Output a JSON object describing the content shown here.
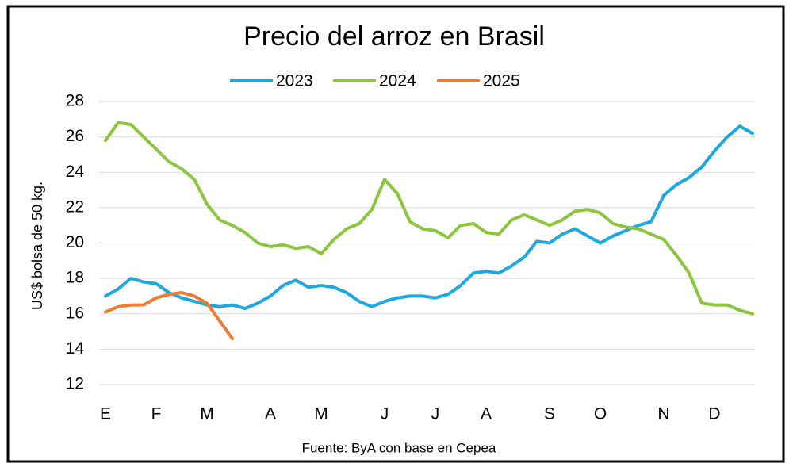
{
  "chart_data": {
    "type": "line",
    "title": "Precio del arroz en Brasil",
    "y_label": "US$ bolsa de 50 kg.",
    "source": "Fuente: ByA con base en Cepea",
    "categories": [
      "E",
      null,
      null,
      null,
      "F",
      null,
      null,
      null,
      "M",
      null,
      null,
      null,
      null,
      "A",
      null,
      null,
      null,
      "M",
      null,
      null,
      null,
      null,
      "J",
      null,
      null,
      null,
      "J",
      null,
      null,
      null,
      "A",
      null,
      null,
      null,
      null,
      "S",
      null,
      null,
      null,
      "O",
      null,
      null,
      null,
      null,
      "N",
      null,
      null,
      null,
      "D",
      null,
      null,
      null
    ],
    "series": [
      {
        "name": "2023",
        "color": "#1ca8e0",
        "values": [
          17.0,
          17.4,
          18.0,
          17.8,
          17.7,
          17.2,
          16.9,
          16.7,
          16.5,
          16.4,
          16.5,
          16.3,
          16.6,
          17.0,
          17.6,
          17.9,
          17.5,
          17.6,
          17.5,
          17.2,
          16.7,
          16.4,
          16.7,
          16.9,
          17.0,
          17.0,
          16.9,
          17.1,
          17.6,
          18.3,
          18.4,
          18.3,
          18.7,
          19.2,
          20.1,
          20.0,
          20.5,
          20.8,
          20.4,
          20.0,
          20.4,
          20.7,
          21.0,
          21.2,
          22.7,
          23.3,
          23.7,
          24.3,
          25.2,
          26.0,
          26.6,
          26.2
        ]
      },
      {
        "name": "2024",
        "color": "#8cc63f",
        "values": [
          25.8,
          26.8,
          26.7,
          26.0,
          25.3,
          24.6,
          24.2,
          23.6,
          22.2,
          21.3,
          21.0,
          20.6,
          20.0,
          19.8,
          19.9,
          19.7,
          19.8,
          19.4,
          20.2,
          20.8,
          21.1,
          21.9,
          23.6,
          22.8,
          21.2,
          20.8,
          20.7,
          20.3,
          21.0,
          21.1,
          20.6,
          20.5,
          21.3,
          21.6,
          21.3,
          21.0,
          21.3,
          21.8,
          21.9,
          21.7,
          21.1,
          20.9,
          20.8,
          20.5,
          20.2,
          19.3,
          18.3,
          16.6,
          16.5,
          16.5,
          16.2,
          16.0
        ]
      },
      {
        "name": "2025",
        "color": "#ed7d31",
        "values": [
          16.1,
          16.4,
          16.5,
          16.5,
          16.9,
          17.1,
          17.2,
          17.0,
          16.6,
          15.6,
          14.6,
          null,
          null,
          null,
          null,
          null,
          null,
          null,
          null,
          null,
          null,
          null,
          null,
          null,
          null,
          null,
          null,
          null,
          null,
          null,
          null,
          null,
          null,
          null,
          null,
          null,
          null,
          null,
          null,
          null,
          null,
          null,
          null,
          null,
          null,
          null,
          null,
          null,
          null,
          null,
          null,
          null
        ]
      }
    ],
    "ylim": [
      12,
      28
    ],
    "yticks": [
      12,
      14,
      16,
      18,
      20,
      22,
      24,
      26,
      28
    ],
    "grid": true,
    "legend": "top"
  }
}
